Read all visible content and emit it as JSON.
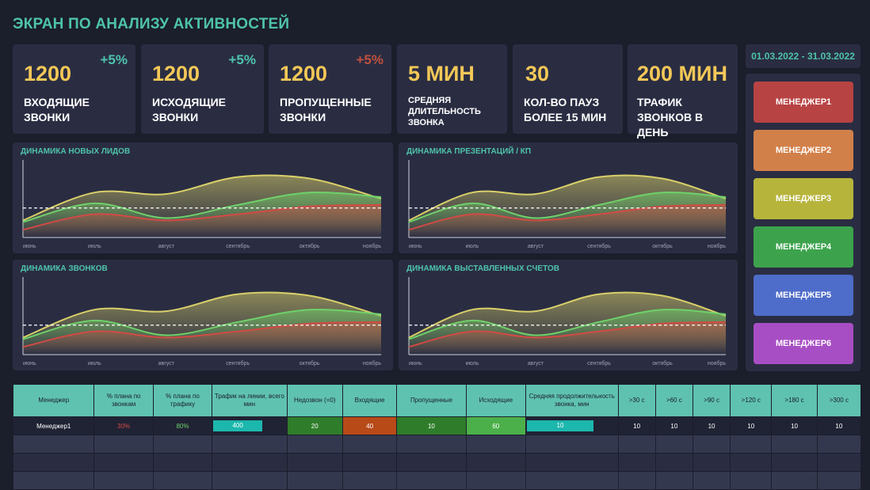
{
  "page": {
    "title": "ЭКРАН ПО АНАЛИЗУ АКТИВНОСТЕЙ",
    "date_range": "01.03.2022 - 31.03.2022"
  },
  "kpis": [
    {
      "value": "1200",
      "delta": "+5%",
      "delta_color": "#4ec3ab",
      "label": "ВХОДЯЩИЕ ЗВОНКИ"
    },
    {
      "value": "1200",
      "delta": "+5%",
      "delta_color": "#4ec3ab",
      "label": "ИСХОДЯЩИЕ ЗВОНКИ"
    },
    {
      "value": "1200",
      "delta": "+5%",
      "delta_color": "#c0503d",
      "label": "ПРОПУЩЕННЫЕ ЗВОНКИ"
    },
    {
      "value": "5 МИН",
      "delta": "",
      "label": "СРЕДНЯЯ ДЛИТЕЛЬНОСТЬ ЗВОНКА"
    },
    {
      "value": "30",
      "delta": "",
      "label": "КОЛ-ВО ПАУЗ БОЛЕЕ 15 МИН"
    },
    {
      "value": "200 МИН",
      "delta": "",
      "label": "ТРАФИК ЗВОНКОВ В ДЕНЬ"
    }
  ],
  "managers": [
    {
      "label": "МЕНЕДЖЕР1",
      "color": "#b84343"
    },
    {
      "label": "МЕНЕДЖЕР2",
      "color": "#d2804a"
    },
    {
      "label": "МЕНЕДЖЕР3",
      "color": "#b7b43c"
    },
    {
      "label": "МЕНЕДЖЕР4",
      "color": "#3ca34c"
    },
    {
      "label": "МЕНЕДЖЕР5",
      "color": "#4e6cc9"
    },
    {
      "label": "МЕНЕДЖЕР6",
      "color": "#a84ec4"
    }
  ],
  "chart_data": [
    {
      "type": "area",
      "title": "ДИНАМИКА НОВЫХ ЛИДОВ",
      "categories": [
        "июнь",
        "июль",
        "август",
        "сентябрь",
        "октябрь",
        "ноябрь"
      ],
      "series": [
        {
          "values": [
            22,
            58,
            56,
            78,
            76,
            50
          ],
          "color": "#d9d06a"
        },
        {
          "values": [
            20,
            44,
            25,
            42,
            58,
            52
          ],
          "color": "#6fd16a"
        },
        {
          "values": [
            10,
            30,
            22,
            30,
            40,
            42
          ],
          "color": "#d24a45"
        }
      ],
      "reference": 38
    },
    {
      "type": "area",
      "title": "ДИНАМИКА ПРЕЗЕНТАЦИЙ / КП",
      "categories": [
        "июнь",
        "июль",
        "август",
        "сентябрь",
        "октябрь",
        "ноябрь"
      ],
      "series": [
        {
          "values": [
            22,
            58,
            56,
            78,
            76,
            50
          ],
          "color": "#d9d06a"
        },
        {
          "values": [
            20,
            44,
            25,
            42,
            58,
            52
          ],
          "color": "#6fd16a"
        },
        {
          "values": [
            10,
            30,
            22,
            30,
            40,
            42
          ],
          "color": "#d24a45"
        }
      ],
      "reference": 38
    },
    {
      "type": "area",
      "title": "ДИНАМИКА ЗВОНКОВ",
      "categories": [
        "июнь",
        "июль",
        "август",
        "сентябрь",
        "октябрь",
        "ноябрь"
      ],
      "series": [
        {
          "values": [
            22,
            58,
            56,
            78,
            76,
            50
          ],
          "color": "#d9d06a"
        },
        {
          "values": [
            20,
            44,
            25,
            42,
            58,
            52
          ],
          "color": "#6fd16a"
        },
        {
          "values": [
            10,
            30,
            22,
            30,
            40,
            42
          ],
          "color": "#d24a45"
        }
      ],
      "reference": 38
    },
    {
      "type": "area",
      "title": "ДИНАМИКА ВЫСТАВЛЕННЫХ СЧЕТОВ",
      "categories": [
        "июнь",
        "июль",
        "август",
        "сентябрь",
        "октябрь",
        "ноябрь"
      ],
      "series": [
        {
          "values": [
            22,
            58,
            56,
            78,
            76,
            50
          ],
          "color": "#d9d06a"
        },
        {
          "values": [
            20,
            44,
            25,
            42,
            58,
            52
          ],
          "color": "#6fd16a"
        },
        {
          "values": [
            10,
            30,
            22,
            30,
            40,
            42
          ],
          "color": "#d24a45"
        }
      ],
      "reference": 38
    }
  ],
  "table": {
    "headers": [
      "Менеджер",
      "% плана по звонкам",
      "% плана по трафику",
      "Трафик на линии, всего мин",
      "Недозвон (=0)",
      "Входящие",
      "Пропущенные",
      "Исходящие",
      "Средняя продолжительность звонка, мин",
      ">30 с",
      ">60 с",
      ">90 с",
      ">120 с",
      ">180 с",
      ">300 с"
    ],
    "rows": [
      [
        "Менеджер1",
        "30%",
        "80%",
        "400",
        "20",
        "40",
        "10",
        "60",
        "10",
        "10",
        "10",
        "10",
        "10",
        "10",
        "10"
      ],
      [
        "",
        "",
        "",
        "",
        "",
        "",
        "",
        "",
        "",
        "",
        "",
        "",
        "",
        "",
        ""
      ],
      [
        "",
        "",
        "",
        "",
        "",
        "",
        "",
        "",
        "",
        "",
        "",
        "",
        "",
        "",
        ""
      ],
      [
        "",
        "",
        "",
        "",
        "",
        "",
        "",
        "",
        "",
        "",
        "",
        "",
        "",
        "",
        ""
      ]
    ],
    "colors": {
      "plan_calls": "#d24a45",
      "plan_traffic": "#6fd16a",
      "traffic_bar": "#1cb7ad",
      "missed_zero": "#2f7d2a",
      "incoming": "#b84a18",
      "missed": "#2f7d2a",
      "outgoing": "#4cb04a",
      "avg_bar": "#1cb7ad"
    }
  }
}
